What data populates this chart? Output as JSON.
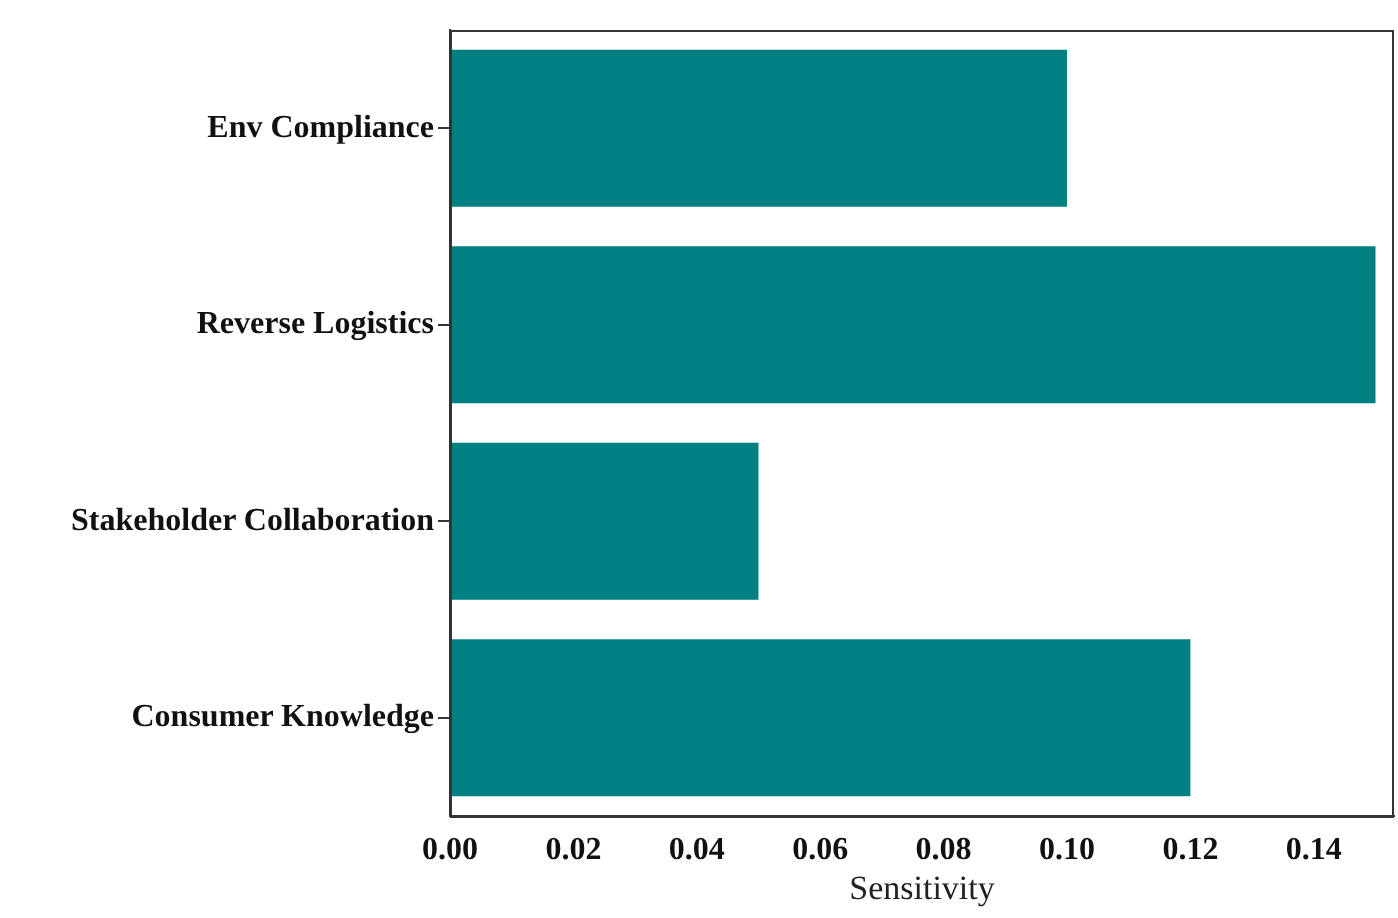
{
  "chart_data": {
    "type": "bar",
    "orientation": "horizontal",
    "categories": [
      "Env Compliance",
      "Reverse Logistics",
      "Stakeholder Collaboration",
      "Consumer Knowledge"
    ],
    "values": [
      0.1,
      0.15,
      0.05,
      0.12
    ],
    "color": "#008080",
    "xlabel": "Sensitivity",
    "xlim": [
      0,
      0.153
    ],
    "xticks": [
      {
        "value": 0,
        "label": "0.00"
      },
      {
        "value": 0.02,
        "label": "0.02"
      },
      {
        "value": 0.04,
        "label": "0.04"
      },
      {
        "value": 0.06,
        "label": "0.06"
      },
      {
        "value": 0.08,
        "label": "0.08"
      },
      {
        "value": 0.1,
        "label": "0.10"
      },
      {
        "value": 0.12,
        "label": "0.12"
      },
      {
        "value": 0.14,
        "label": "0.14"
      }
    ],
    "grid": false,
    "legend": false
  }
}
